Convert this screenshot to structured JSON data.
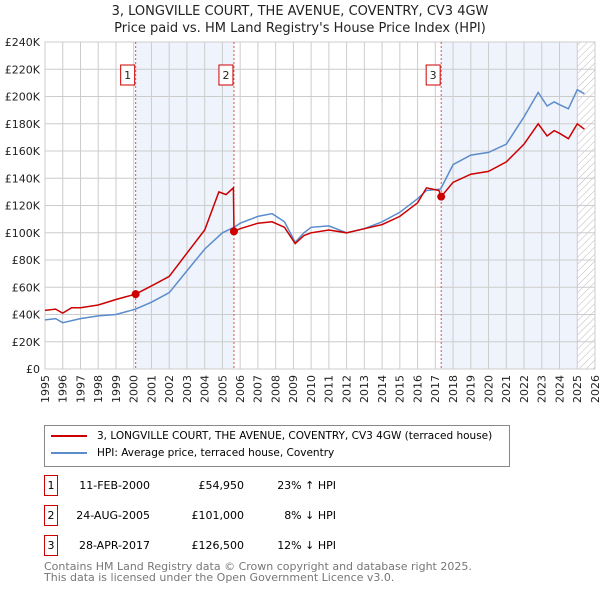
{
  "chart_data": {
    "type": "line",
    "title": "3, LONGVILLE COURT, THE AVENUE, COVENTRY, CV3 4GW",
    "subtitle": "Price paid vs. HM Land Registry's House Price Index (HPI)",
    "xlim": [
      1995,
      2026
    ],
    "ylim": [
      0,
      240000
    ],
    "x_ticks": [
      "1995",
      "1996",
      "1997",
      "1998",
      "1999",
      "2000",
      "2001",
      "2002",
      "2003",
      "2004",
      "2005",
      "2006",
      "2007",
      "2008",
      "2009",
      "2010",
      "2011",
      "2012",
      "2013",
      "2014",
      "2015",
      "2016",
      "2017",
      "2018",
      "2019",
      "2020",
      "2021",
      "2022",
      "2023",
      "2024",
      "2025",
      "2026"
    ],
    "y_ticks": [
      "£0",
      "£20K",
      "£40K",
      "£60K",
      "£80K",
      "£100K",
      "£120K",
      "£140K",
      "£160K",
      "£180K",
      "£200K",
      "£220K",
      "£240K"
    ],
    "grid": true,
    "series": [
      {
        "name": "3, LONGVILLE COURT, THE AVENUE, COVENTRY, CV3 4GW (terraced house)",
        "color": "#cc0000",
        "x": [
          1995,
          1995.6,
          1996,
          1996.5,
          1997,
          1998,
          1999,
          2000.11,
          2001,
          2002,
          2003,
          2004,
          2004.8,
          2005.2,
          2005.62,
          2005.65,
          2006,
          2007,
          2007.8,
          2008.5,
          2009.1,
          2009.6,
          2010,
          2011,
          2012,
          2013,
          2014,
          2015,
          2016,
          2016.5,
          2017.2,
          2017.33,
          2018,
          2019,
          2020,
          2021,
          2022,
          2022.8,
          2023.3,
          2023.7,
          2024,
          2024.5,
          2025,
          2025.4
        ],
        "y": [
          43000,
          44000,
          41000,
          45000,
          45000,
          47000,
          51000,
          54950,
          61000,
          68000,
          85000,
          102000,
          130000,
          128000,
          133000,
          101000,
          103000,
          107000,
          108000,
          104000,
          92000,
          98000,
          100000,
          102000,
          100000,
          103000,
          106000,
          112000,
          122000,
          133000,
          131000,
          126500,
          137000,
          143000,
          145000,
          152000,
          165000,
          180000,
          171000,
          175000,
          173000,
          169000,
          180000,
          176000
        ]
      },
      {
        "name": "HPI: Average price, terraced house, Coventry",
        "color": "#5b8ccc",
        "x": [
          1995,
          1995.6,
          1996,
          1997,
          1998,
          1999,
          2000.11,
          2001,
          2002,
          2003,
          2004,
          2005,
          2005.65,
          2006,
          2007,
          2007.8,
          2008.5,
          2009.1,
          2009.6,
          2010,
          2011,
          2012,
          2013,
          2014,
          2015,
          2016,
          2016.5,
          2017.3,
          2018,
          2019,
          2020,
          2021,
          2022,
          2022.8,
          2023.3,
          2023.7,
          2024,
          2024.5,
          2025,
          2025.4
        ],
        "y": [
          36000,
          37000,
          34000,
          37000,
          39000,
          40000,
          44000,
          49000,
          56000,
          72000,
          88000,
          100000,
          104000,
          107000,
          112000,
          114000,
          108000,
          93000,
          100000,
          104000,
          105000,
          100000,
          103000,
          108000,
          115000,
          125000,
          131000,
          132000,
          150000,
          157000,
          159000,
          165000,
          185000,
          203000,
          193000,
          196000,
          194000,
          191000,
          205000,
          202000
        ]
      }
    ],
    "sales": [
      {
        "label": "1",
        "x": 2000.11,
        "y": 54950
      },
      {
        "label": "2",
        "x": 2005.65,
        "y": 101000
      },
      {
        "label": "3",
        "x": 2017.33,
        "y": 126500
      }
    ],
    "shaded_ranges": [
      [
        2000.11,
        2005.65
      ],
      [
        2017.33,
        2025.0
      ]
    ],
    "hatch_from": 2025.0,
    "legend_placement": "below"
  },
  "legend": [
    {
      "label": "3, LONGVILLE COURT, THE AVENUE, COVENTRY, CV3 4GW (terraced house)",
      "color": "#cc0000"
    },
    {
      "label": "HPI: Average price, terraced house, Coventry",
      "color": "#5b8ccc"
    }
  ],
  "transactions": [
    {
      "num": "1",
      "date": "11-FEB-2000",
      "price": "£54,950",
      "hpi": "23% ↑ HPI"
    },
    {
      "num": "2",
      "date": "24-AUG-2005",
      "price": "£101,000",
      "hpi": "8% ↓ HPI"
    },
    {
      "num": "3",
      "date": "28-APR-2017",
      "price": "£126,500",
      "hpi": "12% ↓ HPI"
    }
  ],
  "footer": [
    "Contains HM Land Registry data © Crown copyright and database right 2025.",
    "This data is licensed under the Open Government Licence v3.0."
  ]
}
